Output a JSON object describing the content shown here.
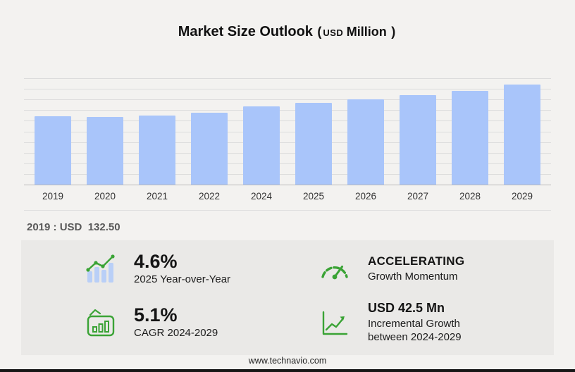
{
  "title": {
    "main": "Market Size Outlook",
    "paren_open": "(",
    "currency": "USD",
    "unit": "Million",
    "paren_close": ")"
  },
  "chart_data": {
    "type": "bar",
    "title": "Market Size Outlook (USD Million)",
    "categories": [
      "2019",
      "2020",
      "2021",
      "2022",
      "2024",
      "2025",
      "2026",
      "2027",
      "2028",
      "2029"
    ],
    "values": [
      132.5,
      130.0,
      133.5,
      139.0,
      150.5,
      157.5,
      164.5,
      172.0,
      181.0,
      193.0
    ],
    "xlabel": "",
    "ylabel": "USD Million",
    "ylim": [
      0,
      200
    ],
    "grid": true,
    "legend": false,
    "bar_color": "#a9c5fa"
  },
  "base_note": {
    "label": "2019 : USD  132.50"
  },
  "stats": {
    "yoy": {
      "value": "4.6%",
      "label": "2025 Year-over-Year"
    },
    "momentum": {
      "value": "ACCELERATING",
      "label": "Growth Momentum"
    },
    "cagr": {
      "value": "5.1%",
      "label": "CAGR 2024-2029"
    },
    "incremental": {
      "value": "USD 42.5 Mn",
      "label_line1": "Incremental Growth",
      "label_line2": "between 2024-2029"
    }
  },
  "footer": {
    "url": "www.technavio.com"
  },
  "colors": {
    "bar": "#a9c5fa",
    "green": "#3aa335",
    "panel": "#eae9e7",
    "page": "#f3f2f0"
  }
}
